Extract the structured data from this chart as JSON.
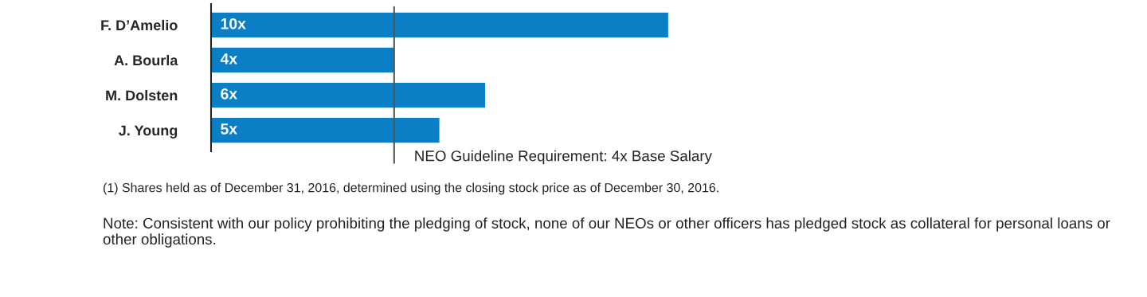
{
  "chart_data": {
    "type": "bar",
    "orientation": "horizontal",
    "categories": [
      "F. D’Amelio",
      "A. Bourla",
      "M. Dolsten",
      "J. Young"
    ],
    "values": [
      10,
      4,
      6,
      5
    ],
    "value_labels": [
      "10x",
      "4x",
      "6x",
      "5x"
    ],
    "color": "#0a7fc5",
    "ref_lines": [
      {
        "axis": "x",
        "value": 4,
        "label": "NEO Guideline Requirement: 4x Base Salary",
        "color": "#555555"
      }
    ],
    "annotations": [
      "(1) Shares held as of December 31, 2016, determined using the closing stock price as of December 30, 2016.",
      "Note: Consistent with our policy prohibiting the pledging of stock, none of our NEOs or other officers has pledged stock as collateral for personal loans or other obligations."
    ],
    "grid": false,
    "legend": false
  }
}
